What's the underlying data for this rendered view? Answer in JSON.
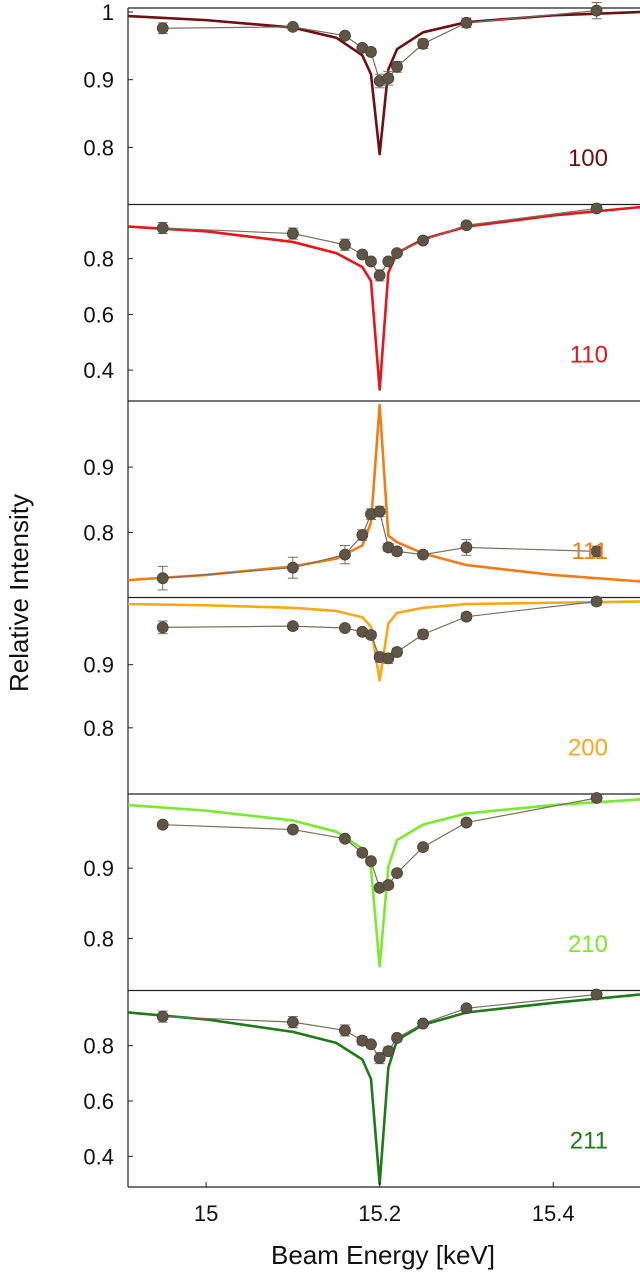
{
  "figure": {
    "ylabel": "Relative Intensity",
    "xlabel": "Beam Energy [keV]",
    "x_ticks": [
      15,
      15.2,
      15.4
    ],
    "xlim": [
      14.91,
      15.5
    ]
  },
  "chart_data": {
    "type": "line",
    "xlabel": "Beam Energy [keV]",
    "ylabel": "Relative Intensity",
    "xlim": [
      14.91,
      15.5
    ],
    "x_ticks": [
      15,
      15.2,
      15.4
    ],
    "grid": false,
    "panels": [
      {
        "label": "100",
        "color": "#6e0f12",
        "ylim": [
          0.72,
          1.0
        ],
        "y_ticks": [
          0.8,
          0.9,
          1
        ],
        "y_tick_labels": [
          "0.8",
          "0.9",
          "1"
        ],
        "measured": {
          "x": [
            14.95,
            15.1,
            15.16,
            15.18,
            15.19,
            15.2,
            15.21,
            15.22,
            15.25,
            15.3,
            15.45
          ],
          "y": [
            0.976,
            0.978,
            0.965,
            0.947,
            0.941,
            0.898,
            0.902,
            0.919,
            0.953,
            0.984,
            1.002
          ],
          "err": [
            0.008,
            0.004,
            0.004,
            0.005,
            0.005,
            0.01,
            0.01,
            0.008,
            0.007,
            0.007,
            0.012
          ]
        },
        "model": {
          "x": [
            14.91,
            15.0,
            15.1,
            15.15,
            15.18,
            15.19,
            15.2,
            15.21,
            15.22,
            15.25,
            15.3,
            15.4,
            15.5
          ],
          "y": [
            0.994,
            0.988,
            0.977,
            0.962,
            0.936,
            0.908,
            0.79,
            0.915,
            0.945,
            0.97,
            0.985,
            0.995,
            1.0
          ]
        }
      },
      {
        "label": "110",
        "color": "#e8151b",
        "ylim": [
          0.3,
          0.98
        ],
        "y_ticks": [
          0.4,
          0.6,
          0.8
        ],
        "y_tick_labels": [
          "0.4",
          "0.6",
          "0.8"
        ],
        "measured": {
          "x": [
            14.95,
            15.1,
            15.16,
            15.18,
            15.19,
            15.2,
            15.21,
            15.22,
            15.25,
            15.3,
            15.45
          ],
          "y": [
            0.91,
            0.89,
            0.85,
            0.815,
            0.79,
            0.74,
            0.79,
            0.82,
            0.865,
            0.92,
            0.98
          ],
          "err": [
            0.02,
            0.02,
            0.02,
            0.01,
            0.01,
            0.02,
            0.01,
            0.01,
            0.01,
            0.01,
            0.01
          ]
        },
        "model": {
          "x": [
            14.91,
            15.0,
            15.1,
            15.15,
            15.18,
            15.19,
            15.2,
            15.21,
            15.22,
            15.25,
            15.3,
            15.4,
            15.5
          ],
          "y": [
            0.915,
            0.898,
            0.86,
            0.82,
            0.77,
            0.72,
            0.33,
            0.75,
            0.82,
            0.87,
            0.915,
            0.955,
            0.985
          ]
        }
      },
      {
        "label": "111",
        "color": "#f07d17",
        "ylim": [
          0.705,
          0.995
        ],
        "y_ticks": [
          0.8,
          0.9
        ],
        "y_tick_labels": [
          "0.8",
          "0.9"
        ],
        "measured": {
          "x": [
            14.95,
            15.1,
            15.16,
            15.18,
            15.19,
            15.2,
            15.21,
            15.22,
            15.25,
            15.3,
            15.45
          ],
          "y": [
            0.73,
            0.746,
            0.766,
            0.796,
            0.828,
            0.832,
            0.777,
            0.771,
            0.766,
            0.777,
            0.771
          ],
          "err": [
            0.018,
            0.016,
            0.014,
            0.008,
            0.008,
            0.008,
            0.006,
            0.006,
            0.005,
            0.012,
            0.008
          ]
        },
        "model": {
          "x": [
            14.91,
            15.0,
            15.1,
            15.15,
            15.18,
            15.19,
            15.2,
            15.21,
            15.22,
            15.25,
            15.3,
            15.4,
            15.5
          ],
          "y": [
            0.727,
            0.735,
            0.748,
            0.76,
            0.78,
            0.815,
            0.995,
            0.795,
            0.785,
            0.768,
            0.75,
            0.735,
            0.725
          ]
        }
      },
      {
        "label": "200",
        "color": "#f8a81a",
        "ylim": [
          0.7,
          1.0
        ],
        "y_ticks": [
          0.8,
          0.9
        ],
        "y_tick_labels": [
          "0.8",
          "0.9"
        ],
        "measured": {
          "x": [
            14.95,
            15.1,
            15.16,
            15.18,
            15.19,
            15.2,
            15.21,
            15.22,
            15.25,
            15.3,
            15.45
          ],
          "y": [
            0.959,
            0.961,
            0.958,
            0.952,
            0.947,
            0.912,
            0.91,
            0.92,
            0.948,
            0.976,
            1.0
          ],
          "err": [
            0.01,
            0.005,
            0.004,
            0.005,
            0.005,
            0.008,
            0.008,
            0.006,
            0.007,
            0.006,
            0.006
          ]
        },
        "model": {
          "x": [
            14.91,
            15.0,
            15.1,
            15.15,
            15.18,
            15.19,
            15.2,
            15.21,
            15.22,
            15.25,
            15.3,
            15.4,
            15.5
          ],
          "y": [
            0.996,
            0.994,
            0.99,
            0.985,
            0.975,
            0.96,
            0.875,
            0.965,
            0.982,
            0.99,
            0.996,
            0.998,
            1.0
          ]
        }
      },
      {
        "label": "210",
        "color": "#7bea2c",
        "ylim": [
          0.73,
          1.0
        ],
        "y_ticks": [
          0.8,
          0.9
        ],
        "y_tick_labels": [
          "0.8",
          "0.9"
        ],
        "measured": {
          "x": [
            14.95,
            15.1,
            15.16,
            15.18,
            15.19,
            15.2,
            15.21,
            15.22,
            15.25,
            15.3,
            15.45
          ],
          "y": [
            0.962,
            0.955,
            0.942,
            0.922,
            0.91,
            0.872,
            0.876,
            0.893,
            0.93,
            0.965,
            1.0
          ],
          "err": [
            0.004,
            0.004,
            0.004,
            0.004,
            0.004,
            0.005,
            0.005,
            0.004,
            0.004,
            0.004,
            0.004
          ]
        },
        "model": {
          "x": [
            14.91,
            15.0,
            15.1,
            15.15,
            15.18,
            15.19,
            15.2,
            15.21,
            15.22,
            15.25,
            15.3,
            15.4,
            15.5
          ],
          "y": [
            0.99,
            0.982,
            0.968,
            0.952,
            0.928,
            0.9,
            0.76,
            0.902,
            0.94,
            0.962,
            0.978,
            0.99,
            0.998
          ]
        }
      },
      {
        "label": "211",
        "color": "#1f7a1a",
        "ylim": [
          0.3,
          0.985
        ],
        "y_ticks": [
          0.4,
          0.6,
          0.8
        ],
        "y_tick_labels": [
          "0.4",
          "0.6",
          "0.8"
        ],
        "measured": {
          "x": [
            14.95,
            15.1,
            15.16,
            15.18,
            15.19,
            15.2,
            15.21,
            15.22,
            15.25,
            15.3,
            15.45
          ],
          "y": [
            0.905,
            0.885,
            0.855,
            0.818,
            0.805,
            0.755,
            0.78,
            0.828,
            0.88,
            0.935,
            0.985
          ],
          "err": [
            0.02,
            0.02,
            0.02,
            0.015,
            0.01,
            0.02,
            0.015,
            0.01,
            0.01,
            0.01,
            0.01
          ]
        },
        "model": {
          "x": [
            14.91,
            15.0,
            15.1,
            15.15,
            15.18,
            15.19,
            15.2,
            15.21,
            15.22,
            15.25,
            15.3,
            15.4,
            15.5
          ],
          "y": [
            0.92,
            0.895,
            0.85,
            0.81,
            0.75,
            0.68,
            0.3,
            0.72,
            0.82,
            0.875,
            0.92,
            0.955,
            0.985
          ]
        }
      }
    ]
  }
}
